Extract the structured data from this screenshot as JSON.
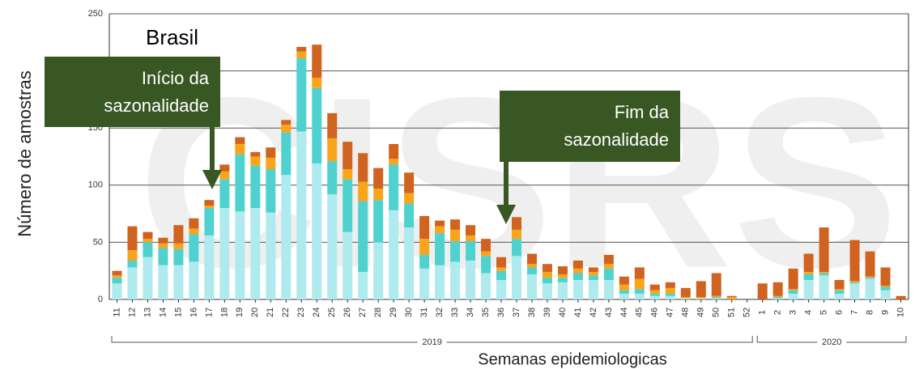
{
  "chart_data": {
    "type": "stacked_bar",
    "title": "Brasil",
    "watermark": "CISRS",
    "y_label": "Número de amostras",
    "x_label": "Semanas epidemiologicas",
    "categories": [
      "11",
      "12",
      "13",
      "14",
      "15",
      "16",
      "17",
      "18",
      "19",
      "20",
      "21",
      "22",
      "23",
      "24",
      "25",
      "26",
      "27",
      "28",
      "29",
      "30",
      "31",
      "32",
      "33",
      "34",
      "35",
      "36",
      "37",
      "38",
      "39",
      "40",
      "41",
      "42",
      "43",
      "44",
      "45",
      "46",
      "47",
      "48",
      "49",
      "50",
      "51",
      "52",
      "1",
      "2",
      "3",
      "4",
      "5",
      "6",
      "7",
      "8",
      "9",
      "10"
    ],
    "category_groups": [
      "2019",
      "2020"
    ],
    "series": [
      {
        "color": "#aeeaee",
        "values": [
          14,
          28,
          37,
          30,
          30,
          33,
          56,
          80,
          77,
          80,
          76,
          109,
          147,
          119,
          92,
          59,
          24,
          50,
          78,
          63,
          27,
          30,
          33,
          34,
          23,
          17,
          38,
          22,
          14,
          15,
          17,
          17,
          17,
          5,
          5,
          3,
          3,
          1,
          1,
          1,
          0,
          0,
          0,
          1,
          5,
          17,
          21,
          5,
          14,
          18,
          8,
          0
        ]
      },
      {
        "color": "#4fd2cf",
        "values": [
          5,
          6,
          13,
          15,
          14,
          24,
          24,
          25,
          50,
          37,
          38,
          37,
          64,
          66,
          29,
          46,
          62,
          37,
          40,
          21,
          12,
          28,
          18,
          17,
          15,
          8,
          15,
          6,
          5,
          4,
          6,
          4,
          10,
          3,
          4,
          2,
          2,
          0,
          0,
          1,
          0,
          0,
          0,
          1,
          3,
          5,
          2,
          3,
          1,
          1,
          3,
          0
        ]
      },
      {
        "color": "#f8a51c",
        "values": [
          2,
          9,
          3,
          4,
          5,
          5,
          2,
          7,
          9,
          8,
          10,
          7,
          6,
          9,
          20,
          9,
          17,
          10,
          5,
          9,
          14,
          6,
          10,
          5,
          4,
          3,
          8,
          3,
          5,
          3,
          4,
          3,
          4,
          5,
          9,
          3,
          5,
          1,
          1,
          1,
          2,
          0,
          0,
          1,
          1,
          2,
          1,
          1,
          1,
          1,
          1,
          0
        ]
      },
      {
        "color": "#d0631f",
        "values": [
          4,
          21,
          6,
          5,
          16,
          9,
          5,
          6,
          6,
          4,
          9,
          4,
          4,
          29,
          22,
          24,
          25,
          18,
          13,
          18,
          20,
          5,
          9,
          9,
          11,
          9,
          11,
          9,
          7,
          7,
          7,
          4,
          8,
          7,
          10,
          5,
          5,
          8,
          14,
          20,
          1,
          0,
          14,
          12,
          18,
          16,
          39,
          8,
          36,
          22,
          16,
          3
        ]
      }
    ],
    "ylim": [
      0,
      250
    ],
    "yticks": [
      0,
      50,
      100,
      150,
      200,
      250
    ],
    "grid": true,
    "annotations": [
      {
        "lines": [
          "Início da",
          "sazonalidade"
        ]
      },
      {
        "lines": [
          "Fim da",
          "sazonalidade"
        ]
      }
    ]
  }
}
